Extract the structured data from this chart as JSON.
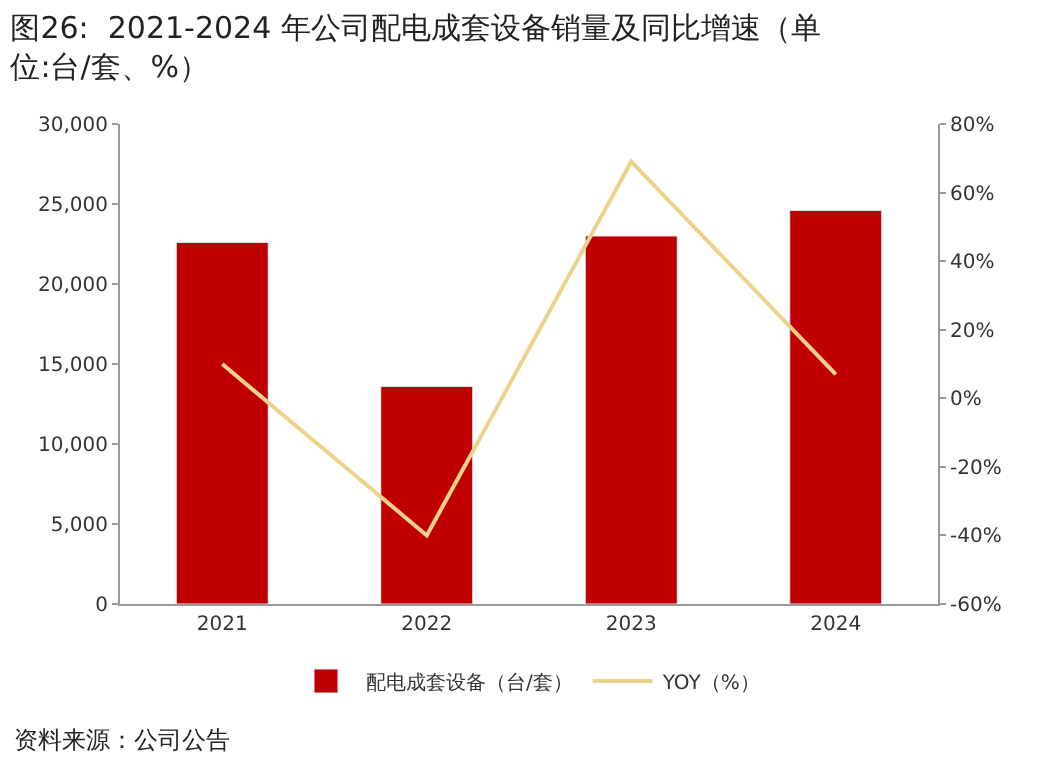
{
  "chart_data": {
    "type": "bar",
    "title": "图26:  2021-2024 年公司配电成套设备销量及同比增速（单位:台/套、%）",
    "categories": [
      "2021",
      "2022",
      "2023",
      "2024"
    ],
    "series": [
      {
        "name": "配电成套设备（台/套）",
        "color": "#c00000",
        "values": [
          22600,
          13600,
          23000,
          24600
        ]
      },
      {
        "name": "YOY（%）",
        "type": "line",
        "axis": "y2",
        "color": "#ecd38c",
        "values": [
          10,
          -40,
          69,
          7
        ]
      }
    ],
    "ylim": [
      0,
      30000
    ],
    "yticks": [
      0,
      {
        "value": 5000,
        "label": "5,000"
      },
      {
        "value": 10000,
        "label": "10,000"
      },
      {
        "value": 15000,
        "label": "15,000"
      },
      {
        "value": 20000,
        "label": "20,000"
      },
      {
        "value": 25000,
        "label": "25,000"
      },
      {
        "value": 30000,
        "label": "30,000"
      }
    ],
    "y2lim": [
      -60,
      80
    ],
    "y2ticks": [
      {
        "value": -60,
        "label": "-60%"
      },
      {
        "value": -40,
        "label": "-40%"
      },
      {
        "value": -20,
        "label": "-20%"
      },
      {
        "value": 0,
        "label": "0%"
      },
      {
        "value": 20,
        "label": "20%"
      },
      {
        "value": 40,
        "label": "40%"
      },
      {
        "value": 60,
        "label": "60%"
      },
      {
        "value": 80,
        "label": "80%"
      }
    ],
    "legend": "bottom",
    "marker": "none",
    "line_style": "solid",
    "annotations": [
      "资料来源：公司公告"
    ]
  }
}
